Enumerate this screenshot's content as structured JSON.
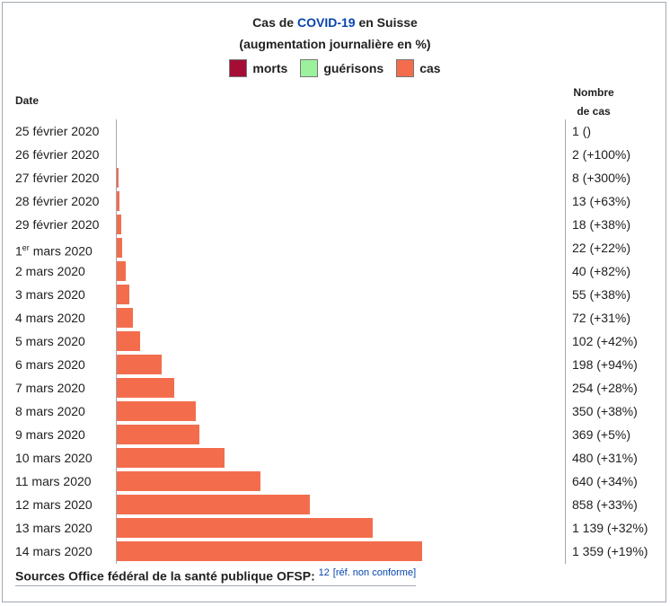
{
  "title": {
    "prefix": "Cas de ",
    "link": "COVID-19",
    "suffix": " en Suisse",
    "line2": "(augmentation journalière en %)"
  },
  "legend": [
    {
      "label": "morts",
      "color": "#a50d35"
    },
    {
      "label": "guérisons",
      "color": "#9cf19c"
    },
    {
      "label": "cas",
      "color": "#f36d4d"
    }
  ],
  "headers": {
    "date": "Date",
    "count_line1": "Nombre",
    "count_line2": "de cas"
  },
  "chart_data": {
    "type": "bar",
    "orientation": "horizontal",
    "series": [
      {
        "name": "cas",
        "color": "#f36d4d",
        "values": [
          1,
          2,
          8,
          13,
          18,
          22,
          40,
          55,
          72,
          102,
          198,
          254,
          350,
          369,
          480,
          640,
          858,
          1139,
          1359
        ]
      }
    ],
    "rows": [
      {
        "date": "25 février 2020",
        "value": 1,
        "label": "1 ()"
      },
      {
        "date": "26 février 2020",
        "value": 2,
        "label": "2 (+100%)"
      },
      {
        "date": "27 février 2020",
        "value": 8,
        "label": "8 (+300%)"
      },
      {
        "date": "28 février 2020",
        "value": 13,
        "label": "13 (+63%)"
      },
      {
        "date": "29 février 2020",
        "value": 18,
        "label": "18 (+38%)"
      },
      {
        "date": "1",
        "date_sup": "er",
        "date_rest": " mars 2020",
        "value": 22,
        "label": "22 (+22%)"
      },
      {
        "date": "2 mars 2020",
        "value": 40,
        "label": "40 (+82%)"
      },
      {
        "date": "3 mars 2020",
        "value": 55,
        "label": "55 (+38%)"
      },
      {
        "date": "4 mars 2020",
        "value": 72,
        "label": "72 (+31%)"
      },
      {
        "date": "5 mars 2020",
        "value": 102,
        "label": "102 (+42%)"
      },
      {
        "date": "6 mars 2020",
        "value": 198,
        "label": "198 (+94%)"
      },
      {
        "date": "7 mars 2020",
        "value": 254,
        "label": "254 (+28%)"
      },
      {
        "date": "8 mars 2020",
        "value": 350,
        "label": "350 (+38%)"
      },
      {
        "date": "9 mars 2020",
        "value": 369,
        "label": "369 (+5%)"
      },
      {
        "date": "10 mars 2020",
        "value": 480,
        "label": "480 (+31%)"
      },
      {
        "date": "11 mars 2020",
        "value": 640,
        "label": "640 (+34%)"
      },
      {
        "date": "12 mars 2020",
        "value": 858,
        "label": "858 (+33%)"
      },
      {
        "date": "13 mars 2020",
        "value": 1139,
        "label": "1 139 (+32%)"
      },
      {
        "date": "14 mars 2020",
        "value": 1359,
        "label": "1 359 (+19%)"
      }
    ],
    "xlim": [
      0,
      1359
    ]
  },
  "sources": {
    "label": "Sources Office fédéral de la santé publique OFSP:",
    "ref_number": "12",
    "ref_note": "[réf. non conforme]"
  }
}
